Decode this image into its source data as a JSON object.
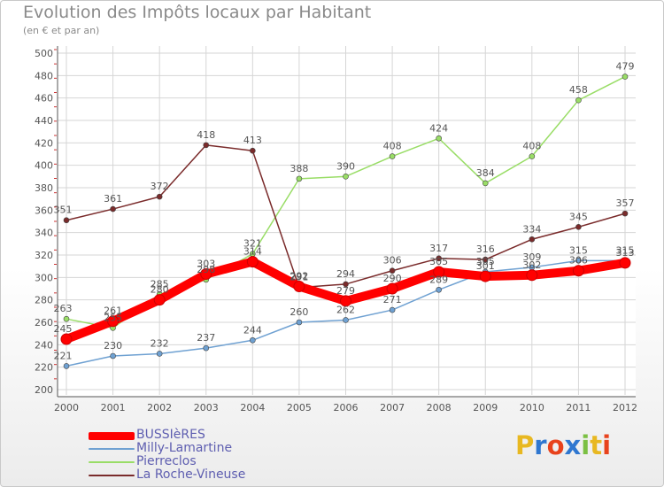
{
  "title": "Evolution des Impôts locaux par Habitant",
  "subtitle": "(en € et par an)",
  "brand": {
    "text": "Proxiti",
    "letter_colors": [
      "#e8b821",
      "#2f77d0",
      "#e8421c",
      "#2f77d0",
      "#7bc043",
      "#e8b821",
      "#e8421c"
    ]
  },
  "chart_data": {
    "type": "line",
    "x": [
      "2000",
      "2001",
      "2002",
      "2003",
      "2004",
      "2005",
      "2006",
      "2007",
      "2008",
      "2009",
      "2010",
      "2011",
      "2012"
    ],
    "ylim": [
      200,
      500
    ],
    "yticks": [
      200,
      220,
      240,
      260,
      280,
      300,
      320,
      340,
      360,
      380,
      400,
      420,
      440,
      460,
      480,
      500
    ],
    "grid": true,
    "legend_position": "bottom-left",
    "series": [
      {
        "name": "BUSSIèRES",
        "color": "#ff0000",
        "values": [
          245,
          261,
          280,
          303,
          314,
          292,
          279,
          290,
          305,
          301,
          302,
          306,
          313
        ]
      },
      {
        "name": "Milly-Lamartine",
        "color": "#6fa1d2",
        "values": [
          221,
          230,
          232,
          237,
          244,
          260,
          262,
          271,
          289,
          305,
          309,
          315,
          315
        ]
      },
      {
        "name": "Pierreclos",
        "color": "#99dd66",
        "values": [
          263,
          255,
          285,
          298,
          321,
          388,
          390,
          408,
          424,
          384,
          408,
          458,
          479
        ]
      },
      {
        "name": "La Roche-Vineuse",
        "color": "#7a2b2b",
        "values": [
          351,
          361,
          372,
          418,
          413,
          291,
          294,
          306,
          317,
          316,
          334,
          345,
          357
        ]
      }
    ]
  }
}
